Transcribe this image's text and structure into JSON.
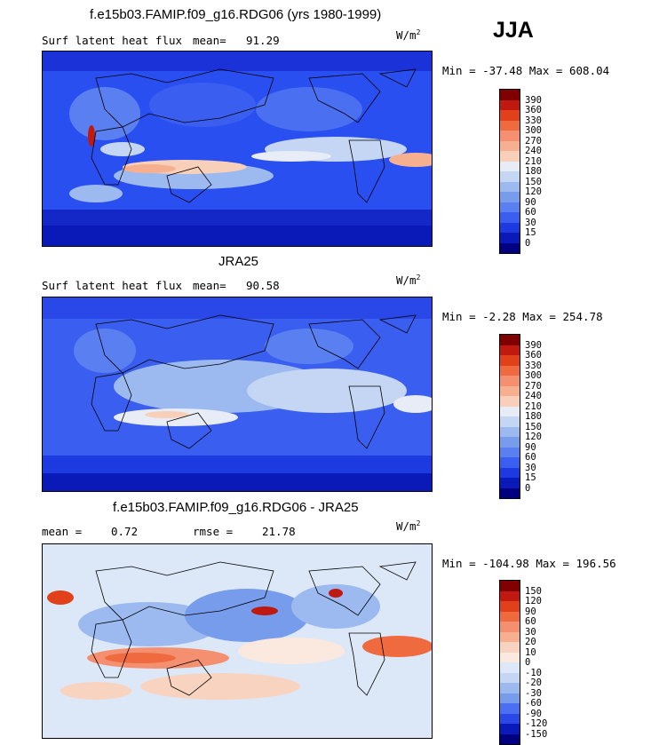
{
  "header": {
    "season": "JJA",
    "model_title": "f.e15b03.FAMIP.f09_g16.RDG06 (yrs 1980-1999)",
    "obs_title": "JRA25",
    "diff_title": "f.e15b03.FAMIP.f09_g16.RDG06 - JRA25"
  },
  "panels": [
    {
      "left": "Surf latent heat flux",
      "mean_label": "mean=",
      "mean_value": "91.29",
      "units": "W/m",
      "units_exp": "2",
      "minmax": "Min = -37.48 Max = 608.04",
      "palette": "abs"
    },
    {
      "left": "Surf latent heat flux",
      "mean_label": "mean=",
      "mean_value": "90.58",
      "units": "W/m",
      "units_exp": "2",
      "minmax": "Min =  -2.28 Max = 254.78",
      "palette": "abs"
    },
    {
      "left": "mean =",
      "mean_label": "rmse =",
      "left_value": "0.72",
      "mean_value": "21.78",
      "units": "W/m",
      "units_exp": "2",
      "minmax": "Min = -104.98 Max = 196.56",
      "palette": "diff"
    }
  ],
  "colorbars": {
    "abs_labels": [
      "390",
      "360",
      "330",
      "300",
      "270",
      "240",
      "210",
      "180",
      "150",
      "120",
      "90",
      "60",
      "30",
      "15",
      "0"
    ],
    "abs_colors": [
      "#800000",
      "#c01a10",
      "#e0401a",
      "#f06a40",
      "#f49070",
      "#f6b090",
      "#f8cfb8",
      "#e8ecf6",
      "#c4d6f4",
      "#9cbaf0",
      "#789cec",
      "#5a7ff0",
      "#3a5ff0",
      "#1c3ae0",
      "#0a1ab8",
      "#000080"
    ],
    "diff_labels": [
      "150",
      "120",
      "90",
      "60",
      "30",
      "20",
      "10",
      "0",
      "-10",
      "-20",
      "-30",
      "-60",
      "-90",
      "-120",
      "-150"
    ],
    "diff_colors": [
      "#800000",
      "#c01a10",
      "#e0401a",
      "#f06a40",
      "#f49070",
      "#f6b090",
      "#f8d4c0",
      "#fbe8de",
      "#dce8f8",
      "#c4d6f4",
      "#9cbaf0",
      "#789cec",
      "#4a6ff0",
      "#2a48e8",
      "#0a1ab8",
      "#000080"
    ]
  }
}
